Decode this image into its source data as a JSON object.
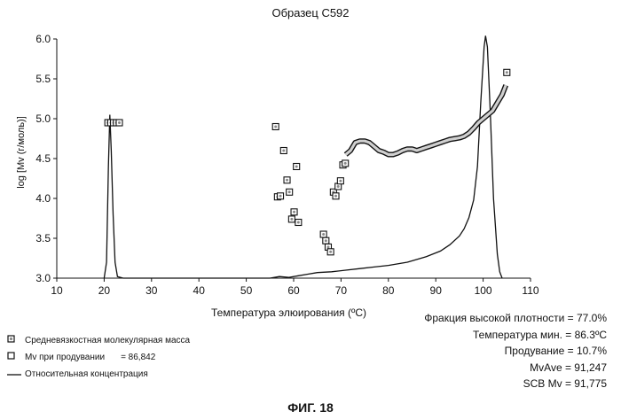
{
  "chart_data": {
    "type": "scatter",
    "title": "Образец С592",
    "xlabel": "Температура элюирования (ºC)",
    "ylabel": "log [Mv (г/моль)]",
    "xlim": [
      10,
      110
    ],
    "ylim": [
      3.0,
      6.0
    ],
    "x_ticks": [
      "10",
      "20",
      "30",
      "40",
      "50",
      "60",
      "70",
      "80",
      "90",
      "100",
      "110"
    ],
    "y_ticks": [
      "3.0",
      "3.5",
      "4.0",
      "4.5",
      "5.0",
      "5.5",
      "6.0"
    ],
    "grid": false,
    "legend_position": "bottom-left",
    "series": [
      {
        "name": "Средневязкостная молекулярная масса",
        "style": "marker-dot",
        "points": [
          [
            20.8,
            4.95
          ],
          [
            21.4,
            4.95
          ],
          [
            22.0,
            4.95
          ],
          [
            22.6,
            4.95
          ],
          [
            23.2,
            4.95
          ],
          [
            56.2,
            4.9
          ],
          [
            56.6,
            4.02
          ],
          [
            57.2,
            4.03
          ],
          [
            57.9,
            4.6
          ],
          [
            58.6,
            4.23
          ],
          [
            59.1,
            4.08
          ],
          [
            59.6,
            3.74
          ],
          [
            60.1,
            3.83
          ],
          [
            60.6,
            4.4
          ],
          [
            61.0,
            3.7
          ],
          [
            66.3,
            3.55
          ],
          [
            66.8,
            3.47
          ],
          [
            67.3,
            3.39
          ],
          [
            67.8,
            3.33
          ],
          [
            68.4,
            4.08
          ],
          [
            68.9,
            4.03
          ],
          [
            69.4,
            4.15
          ],
          [
            69.9,
            4.22
          ],
          [
            70.4,
            4.42
          ],
          [
            70.9,
            4.44
          ],
          [
            105.0,
            5.58
          ]
        ]
      },
      {
        "name": "Mv при продувании",
        "value_label": "= 86,842",
        "style": "marker-line",
        "points": [
          [
            71,
            4.55
          ],
          [
            72,
            4.6
          ],
          [
            73,
            4.7
          ],
          [
            74,
            4.72
          ],
          [
            75,
            4.72
          ],
          [
            76,
            4.7
          ],
          [
            77,
            4.65
          ],
          [
            78,
            4.6
          ],
          [
            79,
            4.58
          ],
          [
            80,
            4.55
          ],
          [
            81,
            4.55
          ],
          [
            82,
            4.57
          ],
          [
            83,
            4.6
          ],
          [
            84,
            4.62
          ],
          [
            85,
            4.62
          ],
          [
            86,
            4.6
          ],
          [
            87,
            4.62
          ],
          [
            88,
            4.64
          ],
          [
            89,
            4.66
          ],
          [
            90,
            4.68
          ],
          [
            91,
            4.7
          ],
          [
            92,
            4.72
          ],
          [
            93,
            4.74
          ],
          [
            94,
            4.75
          ],
          [
            95,
            4.76
          ],
          [
            96,
            4.78
          ],
          [
            97,
            4.82
          ],
          [
            98,
            4.88
          ],
          [
            99,
            4.95
          ],
          [
            100,
            5.0
          ],
          [
            101,
            5.05
          ],
          [
            102,
            5.1
          ],
          [
            103,
            5.2
          ],
          [
            104,
            5.3
          ],
          [
            104.8,
            5.42
          ]
        ]
      },
      {
        "name": "Относительная концентрация",
        "style": "line",
        "points": [
          [
            20.0,
            3.0
          ],
          [
            20.5,
            3.2
          ],
          [
            20.9,
            4.4
          ],
          [
            21.2,
            5.05
          ],
          [
            21.5,
            4.6
          ],
          [
            21.9,
            3.8
          ],
          [
            22.3,
            3.2
          ],
          [
            22.8,
            3.02
          ],
          [
            24,
            3.0
          ],
          [
            55,
            3.0
          ],
          [
            57,
            3.02
          ],
          [
            59,
            3.01
          ],
          [
            61,
            3.03
          ],
          [
            63,
            3.05
          ],
          [
            65,
            3.07
          ],
          [
            68,
            3.08
          ],
          [
            71,
            3.1
          ],
          [
            74,
            3.12
          ],
          [
            77,
            3.14
          ],
          [
            80,
            3.16
          ],
          [
            84,
            3.2
          ],
          [
            88,
            3.27
          ],
          [
            91,
            3.34
          ],
          [
            93,
            3.42
          ],
          [
            95,
            3.53
          ],
          [
            96,
            3.62
          ],
          [
            97,
            3.76
          ],
          [
            98,
            3.98
          ],
          [
            98.8,
            4.4
          ],
          [
            99.5,
            5.2
          ],
          [
            100.2,
            5.9
          ],
          [
            100.5,
            6.04
          ],
          [
            100.9,
            5.9
          ],
          [
            101.5,
            5.1
          ],
          [
            102.2,
            4.0
          ],
          [
            103,
            3.3
          ],
          [
            103.5,
            3.08
          ],
          [
            104,
            3.0
          ]
        ]
      }
    ]
  },
  "legend": {
    "items": [
      {
        "label": "Средневязкостная молекулярная масса",
        "symbol": "dot-square-icon"
      },
      {
        "label": "Mv  при продувании",
        "value": "= 86,842",
        "symbol": "open-square-icon"
      },
      {
        "label": "Относительная концентрация",
        "symbol": "line-icon"
      }
    ]
  },
  "stats": [
    "Фракция высокой плотности = 77.0%",
    "Температура мин. = 86.3ºC",
    "Продувание = 10.7%",
    "MvAve = 91,247",
    "SCB Mv = 91,775"
  ],
  "caption": "ФИГ. 18",
  "colors": {
    "ink": "#111111",
    "marker_fill": "#ffffff",
    "marker_dot": "#888888",
    "purge_fill": "#cfcfcf"
  }
}
